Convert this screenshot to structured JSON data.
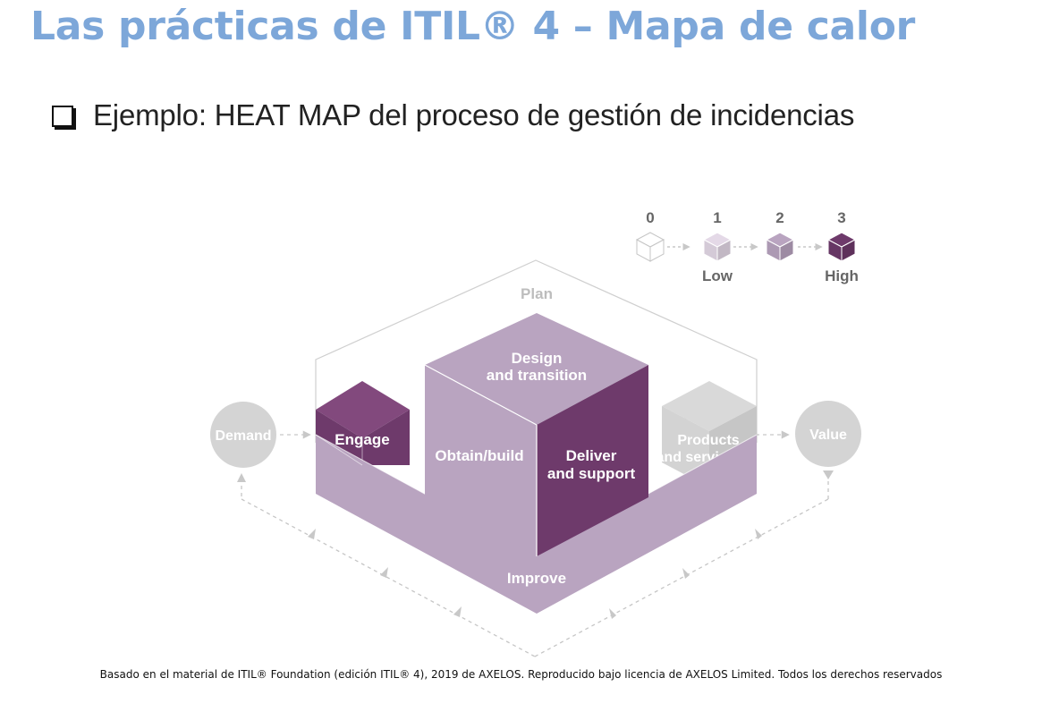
{
  "slide": {
    "title": "Las prácticas de ITIL® 4 – Mapa de calor",
    "bullet": "Ejemplo: HEAT MAP del proceso de gestión de incidencias",
    "footer": "Basado en el material de ITIL® Foundation (edición ITIL® 4), 2019 de AXELOS. Reproducido  bajo licencia de AXELOS Limited. Todos los derechos reservados"
  },
  "legend": {
    "levels": [
      {
        "value": "0",
        "label": "",
        "color": "#ffffff"
      },
      {
        "value": "1",
        "label": "Low",
        "color": "#e4d9e7"
      },
      {
        "value": "2",
        "label": "",
        "color": "#b9a4c0"
      },
      {
        "value": "3",
        "label": "High",
        "color": "#6e3a6b"
      }
    ]
  },
  "diagram": {
    "plan": "Plan",
    "demand": "Demand",
    "value": "Value",
    "engage": "Engage",
    "design_1": "Design",
    "design_2": "and transition",
    "obtain": "Obtain/build",
    "deliver_1": "Deliver",
    "deliver_2": "and support",
    "products_1": "Products",
    "products_2": "and services",
    "improve": "Improve",
    "heat": {
      "engage": 3,
      "design_and_transition": 2,
      "obtain_build": 2,
      "deliver_and_support": 3,
      "improve": 2,
      "products_and_services": 0
    },
    "colors": {
      "high": "#6e3a6b",
      "medium": "#b9a4c0",
      "low": "#e4d9e7",
      "neutral_grey": "#d4d4d4",
      "outline_grey": "#bdbdbd"
    }
  }
}
